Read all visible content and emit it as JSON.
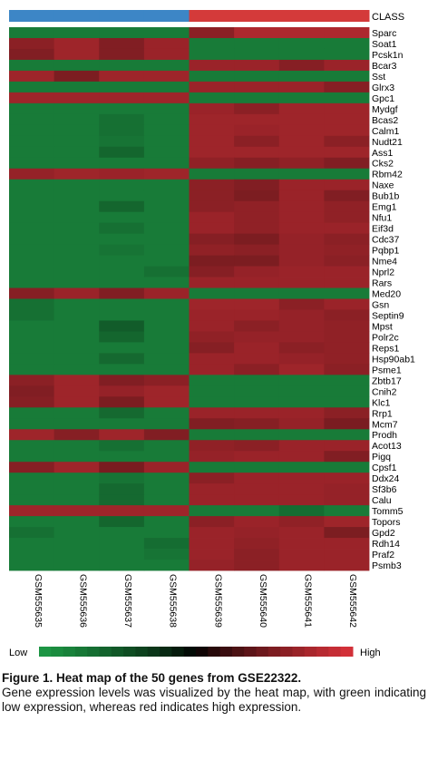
{
  "chart_data": {
    "type": "heatmap",
    "title": "",
    "class_label": "CLASS",
    "class_colors": [
      "#3d86c6",
      "#d43a3a"
    ],
    "class_assignment": [
      0,
      0,
      0,
      0,
      1,
      1,
      1,
      1
    ],
    "samples": [
      "GSM555635",
      "GSM555636",
      "GSM555637",
      "GSM555638",
      "GSM555639",
      "GSM555640",
      "GSM555641",
      "GSM555642"
    ],
    "genes": [
      "Sparc",
      "Soat1",
      "Pcsk1n",
      "Bcar3",
      "Sst",
      "Glrx3",
      "Gpc1",
      "Mydgf",
      "Bcas2",
      "Calm1",
      "Nudt21",
      "Ass1",
      "Cks2",
      "Rbm42",
      "Naxe",
      "Bub1b",
      "Emg1",
      "Nfu1",
      "Eif3d",
      "Cdc37",
      "Pqbp1",
      "Nme4",
      "Nprl2",
      "Rars",
      "Med20",
      "Gsn",
      "Septin9",
      "Mpst",
      "Polr2c",
      "Reps1",
      "Hsp90ab1",
      "Psme1",
      "Zbtb17",
      "Cnih2",
      "Klc1",
      "Rrp1",
      "Mcm7",
      "Prodh",
      "Acot13",
      "Pigq",
      "Cpsf1",
      "Ddx24",
      "Sf3b6",
      "Calu",
      "Tomm5",
      "Topors",
      "Gpd2",
      "Rdh14",
      "Praf2",
      "Psmb3"
    ],
    "values": [
      [
        -0.45,
        -0.45,
        -0.45,
        -0.45,
        0.8,
        0.45,
        0.45,
        0.45
      ],
      [
        0.8,
        0.6,
        0.9,
        0.65,
        -0.45,
        -0.45,
        -0.45,
        -0.45
      ],
      [
        0.9,
        0.6,
        0.9,
        0.65,
        -0.45,
        -0.45,
        -0.45,
        -0.45
      ],
      [
        -0.45,
        -0.45,
        -0.45,
        -0.45,
        0.65,
        0.65,
        0.85,
        0.65
      ],
      [
        0.6,
        0.95,
        0.6,
        0.6,
        -0.45,
        -0.45,
        -0.45,
        -0.45
      ],
      [
        -0.45,
        -0.45,
        -0.45,
        -0.45,
        0.65,
        0.65,
        0.65,
        0.85
      ],
      [
        0.6,
        0.6,
        0.6,
        0.6,
        -0.45,
        -0.45,
        -0.45,
        -0.45
      ],
      [
        -0.45,
        -0.45,
        -0.45,
        -0.45,
        0.65,
        0.8,
        0.6,
        0.6
      ],
      [
        -0.45,
        -0.45,
        -0.6,
        -0.45,
        0.6,
        0.6,
        0.6,
        0.6
      ],
      [
        -0.45,
        -0.45,
        -0.6,
        -0.45,
        0.6,
        0.65,
        0.6,
        0.6
      ],
      [
        -0.45,
        -0.45,
        -0.55,
        -0.45,
        0.6,
        0.8,
        0.6,
        0.8
      ],
      [
        -0.45,
        -0.45,
        -0.75,
        -0.45,
        0.6,
        0.6,
        0.6,
        0.6
      ],
      [
        -0.45,
        -0.45,
        -0.45,
        -0.45,
        0.75,
        0.85,
        0.75,
        0.9
      ],
      [
        0.7,
        0.6,
        0.65,
        0.6,
        -0.45,
        -0.45,
        -0.45,
        -0.45
      ],
      [
        -0.45,
        -0.45,
        -0.45,
        -0.45,
        0.8,
        0.9,
        0.65,
        0.65
      ],
      [
        -0.45,
        -0.45,
        -0.45,
        -0.45,
        0.8,
        0.95,
        0.65,
        0.9
      ],
      [
        -0.45,
        -0.45,
        -0.75,
        -0.45,
        0.8,
        0.75,
        0.65,
        0.75
      ],
      [
        -0.45,
        -0.45,
        -0.45,
        -0.45,
        0.65,
        0.75,
        0.65,
        0.75
      ],
      [
        -0.45,
        -0.45,
        -0.6,
        -0.45,
        0.65,
        0.75,
        0.65,
        0.65
      ],
      [
        -0.45,
        -0.45,
        -0.45,
        -0.45,
        0.85,
        0.95,
        0.7,
        0.8
      ],
      [
        -0.45,
        -0.45,
        -0.55,
        -0.45,
        0.75,
        0.8,
        0.7,
        0.75
      ],
      [
        -0.45,
        -0.45,
        -0.45,
        -0.45,
        0.95,
        0.95,
        0.7,
        0.8
      ],
      [
        -0.45,
        -0.45,
        -0.45,
        -0.6,
        0.85,
        0.7,
        0.65,
        0.65
      ],
      [
        -0.45,
        -0.45,
        -0.45,
        -0.45,
        0.65,
        0.65,
        0.65,
        0.65
      ],
      [
        0.85,
        0.65,
        0.9,
        0.65,
        -0.45,
        -0.45,
        -0.45,
        -0.45
      ],
      [
        -0.6,
        -0.45,
        -0.45,
        -0.45,
        0.6,
        0.6,
        0.8,
        0.65
      ],
      [
        -0.6,
        -0.45,
        -0.45,
        -0.45,
        0.65,
        0.65,
        0.7,
        0.8
      ],
      [
        -0.45,
        -0.45,
        -0.9,
        -0.45,
        0.65,
        0.8,
        0.7,
        0.75
      ],
      [
        -0.45,
        -0.45,
        -0.75,
        -0.45,
        0.75,
        0.7,
        0.7,
        0.75
      ],
      [
        -0.45,
        -0.45,
        -0.45,
        -0.45,
        0.85,
        0.65,
        0.8,
        0.75
      ],
      [
        -0.45,
        -0.45,
        -0.7,
        -0.45,
        0.65,
        0.65,
        0.7,
        0.75
      ],
      [
        -0.45,
        -0.45,
        -0.45,
        -0.45,
        0.65,
        0.8,
        0.6,
        0.8
      ],
      [
        0.8,
        0.6,
        0.9,
        0.8,
        -0.45,
        -0.45,
        -0.45,
        -0.45
      ],
      [
        0.9,
        0.6,
        0.7,
        0.6,
        -0.45,
        -0.45,
        -0.45,
        -0.45
      ],
      [
        0.85,
        0.6,
        0.95,
        0.6,
        -0.45,
        -0.45,
        -0.45,
        -0.45
      ],
      [
        -0.45,
        -0.45,
        -0.7,
        -0.45,
        0.65,
        0.65,
        0.65,
        0.8
      ],
      [
        -0.45,
        -0.45,
        -0.45,
        -0.45,
        0.9,
        0.85,
        0.7,
        0.97
      ],
      [
        0.6,
        0.85,
        0.6,
        0.9,
        -0.45,
        -0.45,
        -0.45,
        -0.45
      ],
      [
        -0.45,
        -0.45,
        -0.6,
        -0.45,
        0.75,
        0.8,
        0.65,
        0.65
      ],
      [
        -0.45,
        -0.45,
        -0.45,
        -0.45,
        0.7,
        0.65,
        0.65,
        0.9
      ],
      [
        0.85,
        0.6,
        0.98,
        0.65,
        -0.45,
        -0.45,
        -0.45,
        -0.45
      ],
      [
        -0.45,
        -0.45,
        -0.55,
        -0.45,
        0.8,
        0.65,
        0.65,
        0.65
      ],
      [
        -0.45,
        -0.45,
        -0.7,
        -0.45,
        0.65,
        0.65,
        0.65,
        0.7
      ],
      [
        -0.45,
        -0.45,
        -0.7,
        -0.45,
        0.65,
        0.65,
        0.65,
        0.7
      ],
      [
        0.6,
        0.6,
        0.6,
        0.6,
        -0.45,
        -0.45,
        -0.65,
        -0.45
      ],
      [
        -0.45,
        -0.45,
        -0.75,
        -0.45,
        0.8,
        0.65,
        0.75,
        0.6
      ],
      [
        -0.6,
        -0.45,
        -0.45,
        -0.45,
        0.65,
        0.7,
        0.65,
        0.95
      ],
      [
        -0.45,
        -0.45,
        -0.45,
        -0.65,
        0.65,
        0.75,
        0.65,
        0.65
      ],
      [
        -0.45,
        -0.45,
        -0.45,
        -0.55,
        0.65,
        0.8,
        0.65,
        0.65
      ],
      [
        -0.45,
        -0.45,
        -0.45,
        -0.45,
        0.7,
        0.8,
        0.65,
        0.65
      ]
    ],
    "color_scale": {
      "low_label": "Low",
      "high_label": "High",
      "low_color": "#1e9a46",
      "mid_color": "#000000",
      "high_color": "#d9323a"
    },
    "xlabel": "",
    "ylabel": ""
  },
  "caption": {
    "title": "Figure 1. Heat map of the 50 genes from GSE22322.",
    "body": "Gene expression levels was visualized by the heat map, with green indicating low expression, whereas red indicates high expression."
  }
}
